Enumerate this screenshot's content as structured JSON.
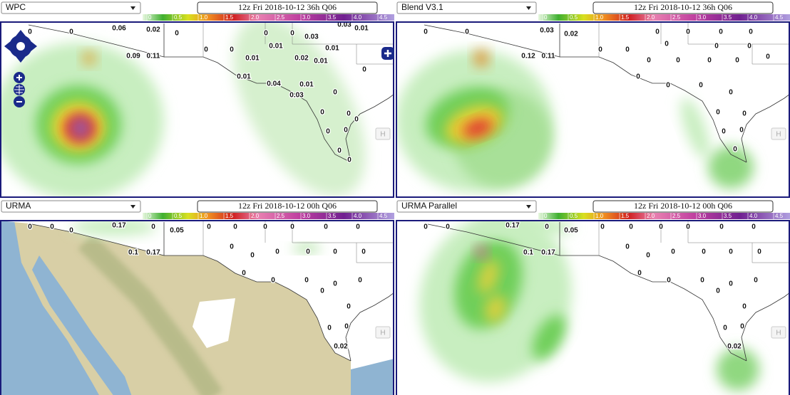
{
  "colorbar_labels": [
    "0",
    "0.5",
    "1.0",
    "1.5",
    "2.0",
    "2.5",
    "3.0",
    "3.5",
    "4.0",
    "4.5"
  ],
  "controls": {
    "hide": "H"
  },
  "panels": [
    {
      "model": "WPC",
      "valid": "12z Fri 2018-10-12 36h Q06",
      "stations": [
        "0",
        "0",
        "0.06",
        "0.02",
        "0",
        "0.09",
        "0.11",
        "0",
        "0",
        "0",
        "0",
        "0.03",
        "0.03",
        "0.01",
        "0.01",
        "0.01",
        "0.01",
        "0.02",
        "0.01",
        "0",
        "0.01",
        "0.04",
        "0.01",
        "0.03",
        "0",
        "0",
        "0",
        "0",
        "0",
        "0",
        "0",
        "0"
      ]
    },
    {
      "model": "Blend V3.1",
      "valid": "12z Fri 2018-10-12 36h Q06",
      "stations": [
        "0",
        "0",
        "0.03",
        "0.02",
        "0.12",
        "0.11",
        "0",
        "0",
        "0",
        "0",
        "0",
        "0",
        "0",
        "0",
        "0",
        "0",
        "0",
        "0",
        "0",
        "0",
        "0",
        "0",
        "0",
        "0",
        "0",
        "0",
        "0",
        "0",
        "0"
      ]
    },
    {
      "model": "URMA",
      "valid": "12z Fri 2018-10-12 00h Q06",
      "stations": [
        "0",
        "0",
        "0",
        "0.17",
        "0",
        "0.05",
        "0.1",
        "0.17",
        "0",
        "0",
        "0",
        "0",
        "0",
        "0",
        "0",
        "0",
        "0",
        "0",
        "0",
        "0",
        "0",
        "0",
        "0",
        "0",
        "0",
        "0",
        "0",
        "0",
        "0",
        "0.02"
      ]
    },
    {
      "model": "URMA Parallel",
      "valid": "12z Fri 2018-10-12 00h Q06",
      "stations": [
        "0",
        "0",
        "0.17",
        "0",
        "0.05",
        "0.1",
        "0.17",
        "0",
        "0",
        "0",
        "0",
        "0",
        "0",
        "0",
        "0",
        "0",
        "0",
        "0",
        "0",
        "0",
        "0",
        "0",
        "0",
        "0",
        "0",
        "0",
        "0",
        "0",
        "0.02"
      ]
    }
  ]
}
